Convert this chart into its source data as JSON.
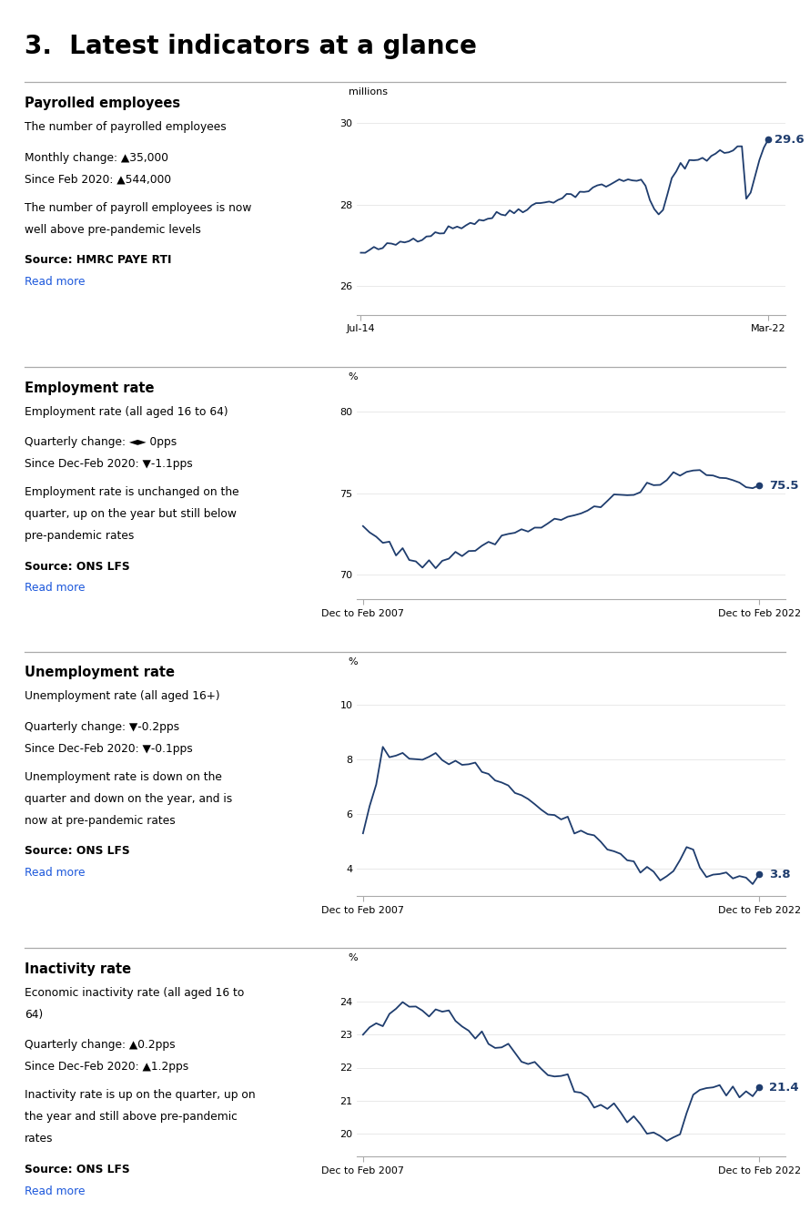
{
  "title": "3.  Latest indicators at a glance",
  "title_fontsize": 20,
  "title_fontweight": "bold",
  "bg_color": "#ffffff",
  "line_color": "#1f3d6e",
  "link_color": "#1a56db",
  "text_color": "#000000",
  "separator_color": "#aaaaaa",
  "sections": [
    {
      "heading": "Payrolled employees",
      "subtitle": "The number of payrolled employees",
      "stats_line1": "Monthly change: ▲35,000",
      "stats_line2": "Since Feb 2020: ▲544,000",
      "description": "The number of payroll employees is now\nwell above pre-pandemic levels",
      "source": "Source: HMRC PAYE RTI",
      "read_more": "Read more",
      "chart_ylabel": "millions",
      "chart_yticks": [
        26,
        28,
        30
      ],
      "chart_ylim": [
        25.3,
        30.5
      ],
      "chart_xlabel_left": "Jul-14",
      "chart_xlabel_right": "Mar-22",
      "chart_end_label": "29.6"
    },
    {
      "heading": "Employment rate",
      "subtitle": "Employment rate (all aged 16 to 64)",
      "stats_line1": "Quarterly change: ◄► 0pps",
      "stats_line2": "Since Dec-Feb 2020: ▼-1.1pps",
      "description": "Employment rate is unchanged on the\nquarter, up on the year but still below\npre-pandemic rates",
      "source": "Source: ONS LFS",
      "read_more": "Read more",
      "chart_ylabel": "%",
      "chart_yticks": [
        70,
        75,
        80
      ],
      "chart_ylim": [
        68.5,
        81.5
      ],
      "chart_xlabel_left": "Dec to Feb 2007",
      "chart_xlabel_right": "Dec to Feb 2022",
      "chart_end_label": "75.5"
    },
    {
      "heading": "Unemployment rate",
      "subtitle": "Unemployment rate (all aged 16+)",
      "stats_line1": "Quarterly change: ▼-0.2pps",
      "stats_line2": "Since Dec-Feb 2020: ▼-0.1pps",
      "description": "Unemployment rate is down on the\nquarter and down on the year, and is\nnow at pre-pandemic rates",
      "source": "Source: ONS LFS",
      "read_more": "Read more",
      "chart_ylabel": "%",
      "chart_yticks": [
        4,
        6,
        8,
        10
      ],
      "chart_ylim": [
        3.0,
        11.2
      ],
      "chart_xlabel_left": "Dec to Feb 2007",
      "chart_xlabel_right": "Dec to Feb 2022",
      "chart_end_label": "3.8"
    },
    {
      "heading": "Inactivity rate",
      "subtitle": "Economic inactivity rate (all aged 16 to\n64)",
      "stats_line1": "Quarterly change: ▲0.2pps",
      "stats_line2": "Since Dec-Feb 2020: ▲1.2pps",
      "description": "Inactivity rate is up on the quarter, up on\nthe year and still above pre-pandemic\nrates",
      "source": "Source: ONS LFS",
      "read_more": "Read more",
      "chart_ylabel": "%",
      "chart_yticks": [
        20,
        21,
        22,
        23,
        24
      ],
      "chart_ylim": [
        19.3,
        25.0
      ],
      "chart_xlabel_left": "Dec to Feb 2007",
      "chart_xlabel_right": "Dec to Feb 2022",
      "chart_end_label": "21.4"
    }
  ]
}
